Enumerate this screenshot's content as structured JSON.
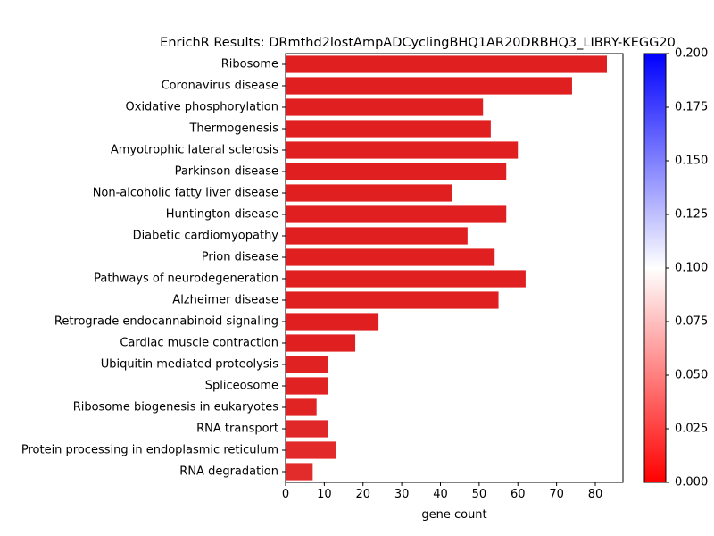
{
  "chart_data": {
    "type": "bar",
    "orientation": "horizontal",
    "title": "EnrichR Results: DRmthd2lostAmpADCyclingBHQ1AR20DRBHQ3_LIBRY-KEGG20",
    "xlabel": "gene count",
    "ylabel": "",
    "xlim": [
      0,
      87.15
    ],
    "xticks": [
      0,
      10,
      20,
      30,
      40,
      50,
      60,
      70,
      80
    ],
    "categories": [
      "Ribosome",
      "Coronavirus disease",
      "Oxidative phosphorylation",
      "Thermogenesis",
      "Amyotrophic lateral sclerosis",
      "Parkinson disease",
      "Non-alcoholic fatty liver disease",
      "Huntington disease",
      "Diabetic cardiomyopathy",
      "Prion disease",
      "Pathways of neurodegeneration",
      "Alzheimer disease",
      "Retrograde endocannabinoid signaling",
      "Cardiac muscle contraction",
      "Ubiquitin mediated proteolysis",
      "Spliceosome",
      "Ribosome biogenesis in eukaryotes",
      "RNA transport",
      "Protein processing in endoplasmic reticulum",
      "RNA degradation"
    ],
    "values": [
      83,
      74,
      51,
      53,
      60,
      57,
      43,
      57,
      47,
      54,
      62,
      55,
      24,
      18,
      11,
      11,
      8,
      11,
      13,
      7
    ],
    "bar_colors": [
      "#e02020",
      "#e02020",
      "#e02020",
      "#e02020",
      "#e02020",
      "#e02020",
      "#e02020",
      "#e02020",
      "#e02020",
      "#e02020",
      "#e02020",
      "#e02020",
      "#e02020",
      "#e02020",
      "#e02222",
      "#e02222",
      "#e02424",
      "#e02828",
      "#e22a2a",
      "#e22c2c"
    ],
    "colorbar": {
      "min": 0.0,
      "max": 0.2,
      "ticks": [
        "0.000",
        "0.025",
        "0.050",
        "0.075",
        "0.100",
        "0.125",
        "0.150",
        "0.175",
        "0.200"
      ],
      "colormap": [
        "#ff0000",
        "#ffffff",
        "#0000ff"
      ]
    },
    "grid": false,
    "legend": "none"
  }
}
